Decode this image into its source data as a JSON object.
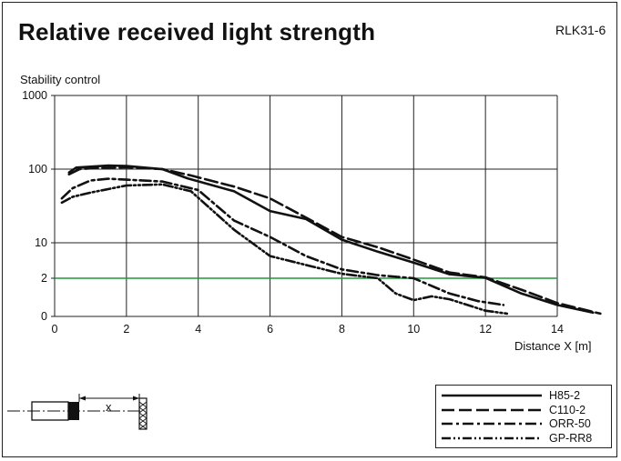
{
  "header": {
    "title": "Relative received light strength",
    "code": "RLK31-6"
  },
  "chart_data": {
    "type": "line",
    "title": "Relative received light strength",
    "ylabel": "Stability control",
    "xlabel": "Distance X [m]",
    "xlim": [
      0,
      14
    ],
    "x_ticks": [
      "0",
      "2",
      "4",
      "6",
      "8",
      "10",
      "12",
      "14"
    ],
    "y_ticks": [
      "0",
      "2",
      "10",
      "100",
      "1000"
    ],
    "y_scale": "log (with 0 at bottom)",
    "grid": true,
    "legend_position": "bottom-right",
    "threshold": {
      "value": 2,
      "color": "#1f9a3a"
    },
    "series": [
      {
        "name": "H85-2",
        "style": "solid",
        "x": [
          0.4,
          0.6,
          1.0,
          1.5,
          2.0,
          3.0,
          3.7,
          5.0,
          6.0,
          7.0,
          8.0,
          9.0,
          10.0,
          11.0,
          12.0,
          13.0,
          14.0,
          15.0
        ],
        "y": [
          90,
          105,
          108,
          112,
          110,
          100,
          75,
          50,
          27,
          21,
          11,
          8,
          5.5,
          2.9,
          2.1,
          1.2,
          0.6,
          0.2
        ]
      },
      {
        "name": "C110-2",
        "style": "long-dash",
        "x": [
          0.4,
          0.7,
          1.2,
          2.0,
          3.0,
          3.8,
          5.0,
          6.0,
          7.0,
          8.0,
          9.0,
          10.0,
          11.0,
          12.0,
          13.0,
          14.0,
          15.2
        ],
        "y": [
          85,
          100,
          104,
          106,
          100,
          82,
          58,
          40,
          22,
          12,
          9,
          6.2,
          3.3,
          2.2,
          1.4,
          0.7,
          0.15
        ]
      },
      {
        "name": "ORR-50",
        "style": "dash-dot",
        "x": [
          0.2,
          0.5,
          1.0,
          1.5,
          2.0,
          3.0,
          4.0,
          5.0,
          6.0,
          7.0,
          8.0,
          9.0,
          10.0,
          11.0,
          11.8,
          12.5
        ],
        "y": [
          40,
          55,
          70,
          74,
          72,
          68,
          52,
          20,
          12,
          7,
          4,
          2.7,
          2.0,
          1.2,
          0.8,
          0.6
        ]
      },
      {
        "name": "GP-RR8",
        "style": "dash-dot-dot",
        "x": [
          0.2,
          0.5,
          1.0,
          2.0,
          3.0,
          3.8,
          5.0,
          6.0,
          7.0,
          8.0,
          9.0,
          9.5,
          10.0,
          10.5,
          11.0,
          11.5,
          12.0,
          12.6
        ],
        "y": [
          35,
          42,
          48,
          60,
          62,
          50,
          15,
          7,
          5,
          3,
          2.0,
          1.2,
          0.85,
          1.05,
          0.9,
          0.6,
          0.3,
          0.15
        ]
      }
    ]
  },
  "legend": {
    "items": [
      {
        "label": "H85-2",
        "dash": ""
      },
      {
        "label": "C110-2",
        "dash": "14 5"
      },
      {
        "label": "ORR-50",
        "dash": "12 4 3 4"
      },
      {
        "label": "GP-RR8",
        "dash": "10 3 2 3 2 3"
      }
    ]
  },
  "sketch": {
    "distance_symbol": "x"
  }
}
